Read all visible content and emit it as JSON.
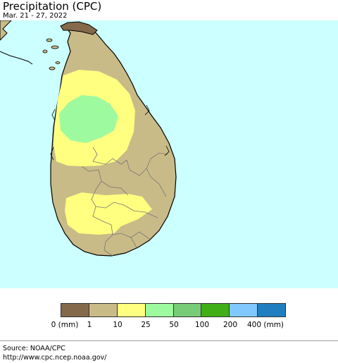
{
  "title": "Precipitation (CPC)",
  "subtitle": "Mar. 21 - 27, 2022",
  "map": {
    "ocean_color": "#ccffff",
    "land_color": "#c9bb88",
    "light_band_color": "#ffff80",
    "green_zone_color": "#9efa9e",
    "brown_zone_color": "#85694b",
    "boundary_color": "#000000",
    "district_color": "#777777"
  },
  "legend": {
    "colors": [
      "#85694b",
      "#c9bb88",
      "#ffff80",
      "#9efa9e",
      "#78cc78",
      "#40ae16",
      "#80c8ff",
      "#1f7ebe"
    ],
    "labels": [
      "0 (mm)",
      "1",
      "10",
      "25",
      "50",
      "100",
      "200",
      "400 (mm)"
    ]
  },
  "source": {
    "line1": "Source: NOAA/CPC",
    "line2": "http://www.cpc.ncep.noaa.gov/"
  }
}
